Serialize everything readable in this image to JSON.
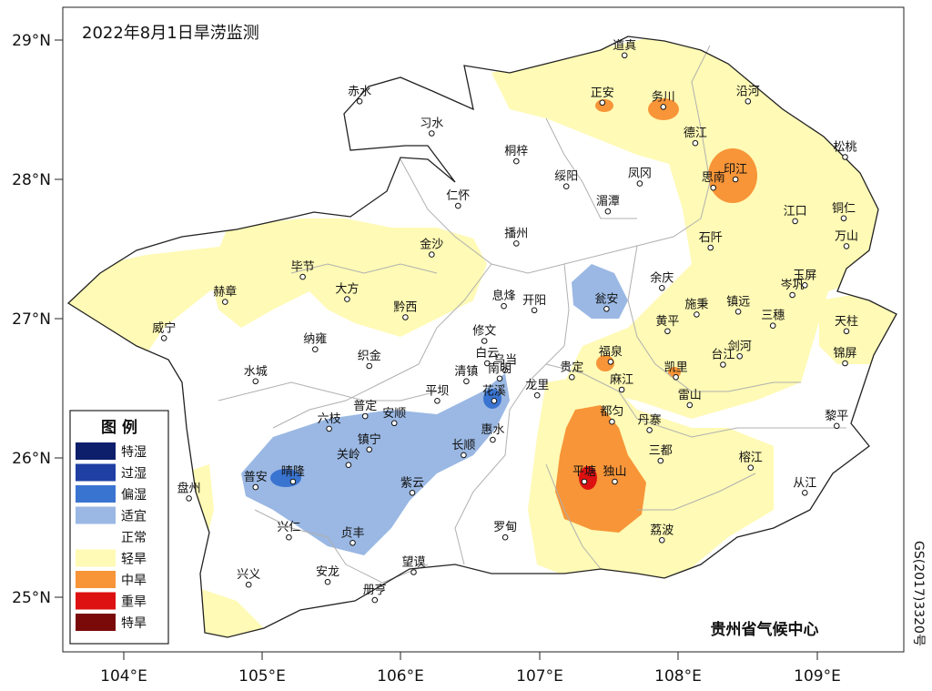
{
  "title": "2022年8月1日旱涝监测",
  "agency": "贵州省气候中心",
  "approval_no": "GS(2017)3320号",
  "lat_ticks": [
    "29°N",
    "28°N",
    "27°N",
    "26°N",
    "25°N"
  ],
  "lon_ticks": [
    "104°E",
    "105°E",
    "106°E",
    "107°E",
    "108°E",
    "109°E"
  ],
  "legend": {
    "title": "图 例",
    "items": [
      {
        "label": "特湿",
        "color": "#0d1f6b"
      },
      {
        "label": "过湿",
        "color": "#1f3fa3"
      },
      {
        "label": "偏湿",
        "color": "#3a74d1"
      },
      {
        "label": "适宜",
        "color": "#9ab8e3"
      },
      {
        "label": "正常",
        "color": "#ffffff"
      },
      {
        "label": "轻旱",
        "color": "#fffab5"
      },
      {
        "label": "中旱",
        "color": "#f79538"
      },
      {
        "label": "重旱",
        "color": "#dd1111"
      },
      {
        "label": "特旱",
        "color": "#7a0a0a"
      }
    ]
  },
  "cities": [
    {
      "name": "道真",
      "lon": 107.61,
      "lat": 28.89
    },
    {
      "name": "赤水",
      "lon": 105.7,
      "lat": 28.56
    },
    {
      "name": "正安",
      "lon": 107.45,
      "lat": 28.55
    },
    {
      "name": "务川",
      "lon": 107.89,
      "lat": 28.52
    },
    {
      "name": "沿河",
      "lon": 108.5,
      "lat": 28.56
    },
    {
      "name": "习水",
      "lon": 106.22,
      "lat": 28.33
    },
    {
      "name": "德江",
      "lon": 108.12,
      "lat": 28.26
    },
    {
      "name": "松桃",
      "lon": 109.2,
      "lat": 28.16
    },
    {
      "name": "桐梓",
      "lon": 106.83,
      "lat": 28.13
    },
    {
      "name": "绥阳",
      "lon": 107.19,
      "lat": 27.95
    },
    {
      "name": "凤冈",
      "lon": 107.72,
      "lat": 27.97
    },
    {
      "name": "印江",
      "lon": 108.41,
      "lat": 28.0
    },
    {
      "name": "思南",
      "lon": 108.25,
      "lat": 27.94
    },
    {
      "name": "仁怀",
      "lon": 106.41,
      "lat": 27.81
    },
    {
      "name": "湄潭",
      "lon": 107.49,
      "lat": 27.77
    },
    {
      "name": "江口",
      "lon": 108.84,
      "lat": 27.7
    },
    {
      "name": "铜仁",
      "lon": 109.19,
      "lat": 27.72
    },
    {
      "name": "金沙",
      "lon": 106.22,
      "lat": 27.46
    },
    {
      "name": "播州",
      "lon": 106.83,
      "lat": 27.54
    },
    {
      "name": "石阡",
      "lon": 108.23,
      "lat": 27.51
    },
    {
      "name": "万山",
      "lon": 109.21,
      "lat": 27.52
    },
    {
      "name": "毕节",
      "lon": 105.29,
      "lat": 27.3
    },
    {
      "name": "玉屏",
      "lon": 108.91,
      "lat": 27.24
    },
    {
      "name": "余庆",
      "lon": 107.88,
      "lat": 27.22
    },
    {
      "name": "岑巩",
      "lon": 108.82,
      "lat": 27.17
    },
    {
      "name": "大方",
      "lon": 105.61,
      "lat": 27.14
    },
    {
      "name": "赫章",
      "lon": 104.73,
      "lat": 27.12
    },
    {
      "name": "息烽",
      "lon": 106.74,
      "lat": 27.09
    },
    {
      "name": "开阳",
      "lon": 106.96,
      "lat": 27.06
    },
    {
      "name": "瓮安",
      "lon": 107.48,
      "lat": 27.07
    },
    {
      "name": "施秉",
      "lon": 108.13,
      "lat": 27.03
    },
    {
      "name": "镇远",
      "lon": 108.43,
      "lat": 27.05
    },
    {
      "name": "三穗",
      "lon": 108.68,
      "lat": 26.95
    },
    {
      "name": "黔西",
      "lon": 106.03,
      "lat": 27.01
    },
    {
      "name": "天柱",
      "lon": 109.21,
      "lat": 26.91
    },
    {
      "name": "威宁",
      "lon": 104.29,
      "lat": 26.86
    },
    {
      "name": "黄平",
      "lon": 107.92,
      "lat": 26.91
    },
    {
      "name": "修文",
      "lon": 106.6,
      "lat": 26.84
    },
    {
      "name": "纳雍",
      "lon": 105.38,
      "lat": 26.78
    },
    {
      "name": "剑河",
      "lon": 108.44,
      "lat": 26.73
    },
    {
      "name": "白云",
      "lon": 106.62,
      "lat": 26.68
    },
    {
      "name": "台江",
      "lon": 108.32,
      "lat": 26.67
    },
    {
      "name": "福泉",
      "lon": 107.51,
      "lat": 26.69
    },
    {
      "name": "乌当",
      "lon": 106.75,
      "lat": 26.63
    },
    {
      "name": "织金",
      "lon": 105.77,
      "lat": 26.66
    },
    {
      "name": "凯里",
      "lon": 107.98,
      "lat": 26.58
    },
    {
      "name": "水城",
      "lon": 104.95,
      "lat": 26.55
    },
    {
      "name": "清镇",
      "lon": 106.47,
      "lat": 26.55
    },
    {
      "name": "贵定",
      "lon": 107.23,
      "lat": 26.58
    },
    {
      "name": "锦屏",
      "lon": 109.2,
      "lat": 26.68
    },
    {
      "name": "南明",
      "lon": 106.71,
      "lat": 26.57
    },
    {
      "name": "龙里",
      "lon": 106.98,
      "lat": 26.45
    },
    {
      "name": "麻江",
      "lon": 107.59,
      "lat": 26.49
    },
    {
      "name": "雷山",
      "lon": 108.08,
      "lat": 26.38
    },
    {
      "name": "平坝",
      "lon": 106.26,
      "lat": 26.41
    },
    {
      "name": "花溪",
      "lon": 106.67,
      "lat": 26.41
    },
    {
      "name": "都匀",
      "lon": 107.52,
      "lat": 26.26
    },
    {
      "name": "普定",
      "lon": 105.74,
      "lat": 26.3
    },
    {
      "name": "安顺",
      "lon": 105.95,
      "lat": 26.25
    },
    {
      "name": "六枝",
      "lon": 105.48,
      "lat": 26.21
    },
    {
      "name": "黎平",
      "lon": 109.14,
      "lat": 26.23
    },
    {
      "name": "丹寨",
      "lon": 107.79,
      "lat": 26.2
    },
    {
      "name": "惠水",
      "lon": 106.66,
      "lat": 26.13
    },
    {
      "name": "镇宁",
      "lon": 105.77,
      "lat": 26.06
    },
    {
      "name": "长顺",
      "lon": 106.45,
      "lat": 26.02
    },
    {
      "name": "三都",
      "lon": 107.87,
      "lat": 25.98
    },
    {
      "name": "关岭",
      "lon": 105.62,
      "lat": 25.95
    },
    {
      "name": "榕江",
      "lon": 108.52,
      "lat": 25.93
    },
    {
      "name": "晴隆",
      "lon": 105.22,
      "lat": 25.83
    },
    {
      "name": "普安",
      "lon": 104.95,
      "lat": 25.79
    },
    {
      "name": "平塘",
      "lon": 107.32,
      "lat": 25.83
    },
    {
      "name": "独山",
      "lon": 107.54,
      "lat": 25.83
    },
    {
      "name": "紫云",
      "lon": 106.08,
      "lat": 25.75
    },
    {
      "name": "从江",
      "lon": 108.91,
      "lat": 25.75
    },
    {
      "name": "盘州",
      "lon": 104.47,
      "lat": 25.71
    },
    {
      "name": "罗甸",
      "lon": 106.75,
      "lat": 25.43
    },
    {
      "name": "兴仁",
      "lon": 105.19,
      "lat": 25.43
    },
    {
      "name": "贞丰",
      "lon": 105.65,
      "lat": 25.39
    },
    {
      "name": "荔波",
      "lon": 107.88,
      "lat": 25.41
    },
    {
      "name": "望谟",
      "lon": 106.09,
      "lat": 25.18
    },
    {
      "name": "安龙",
      "lon": 105.47,
      "lat": 25.11
    },
    {
      "name": "兴义",
      "lon": 104.9,
      "lat": 25.09
    },
    {
      "name": "册亨",
      "lon": 105.81,
      "lat": 24.98
    }
  ]
}
